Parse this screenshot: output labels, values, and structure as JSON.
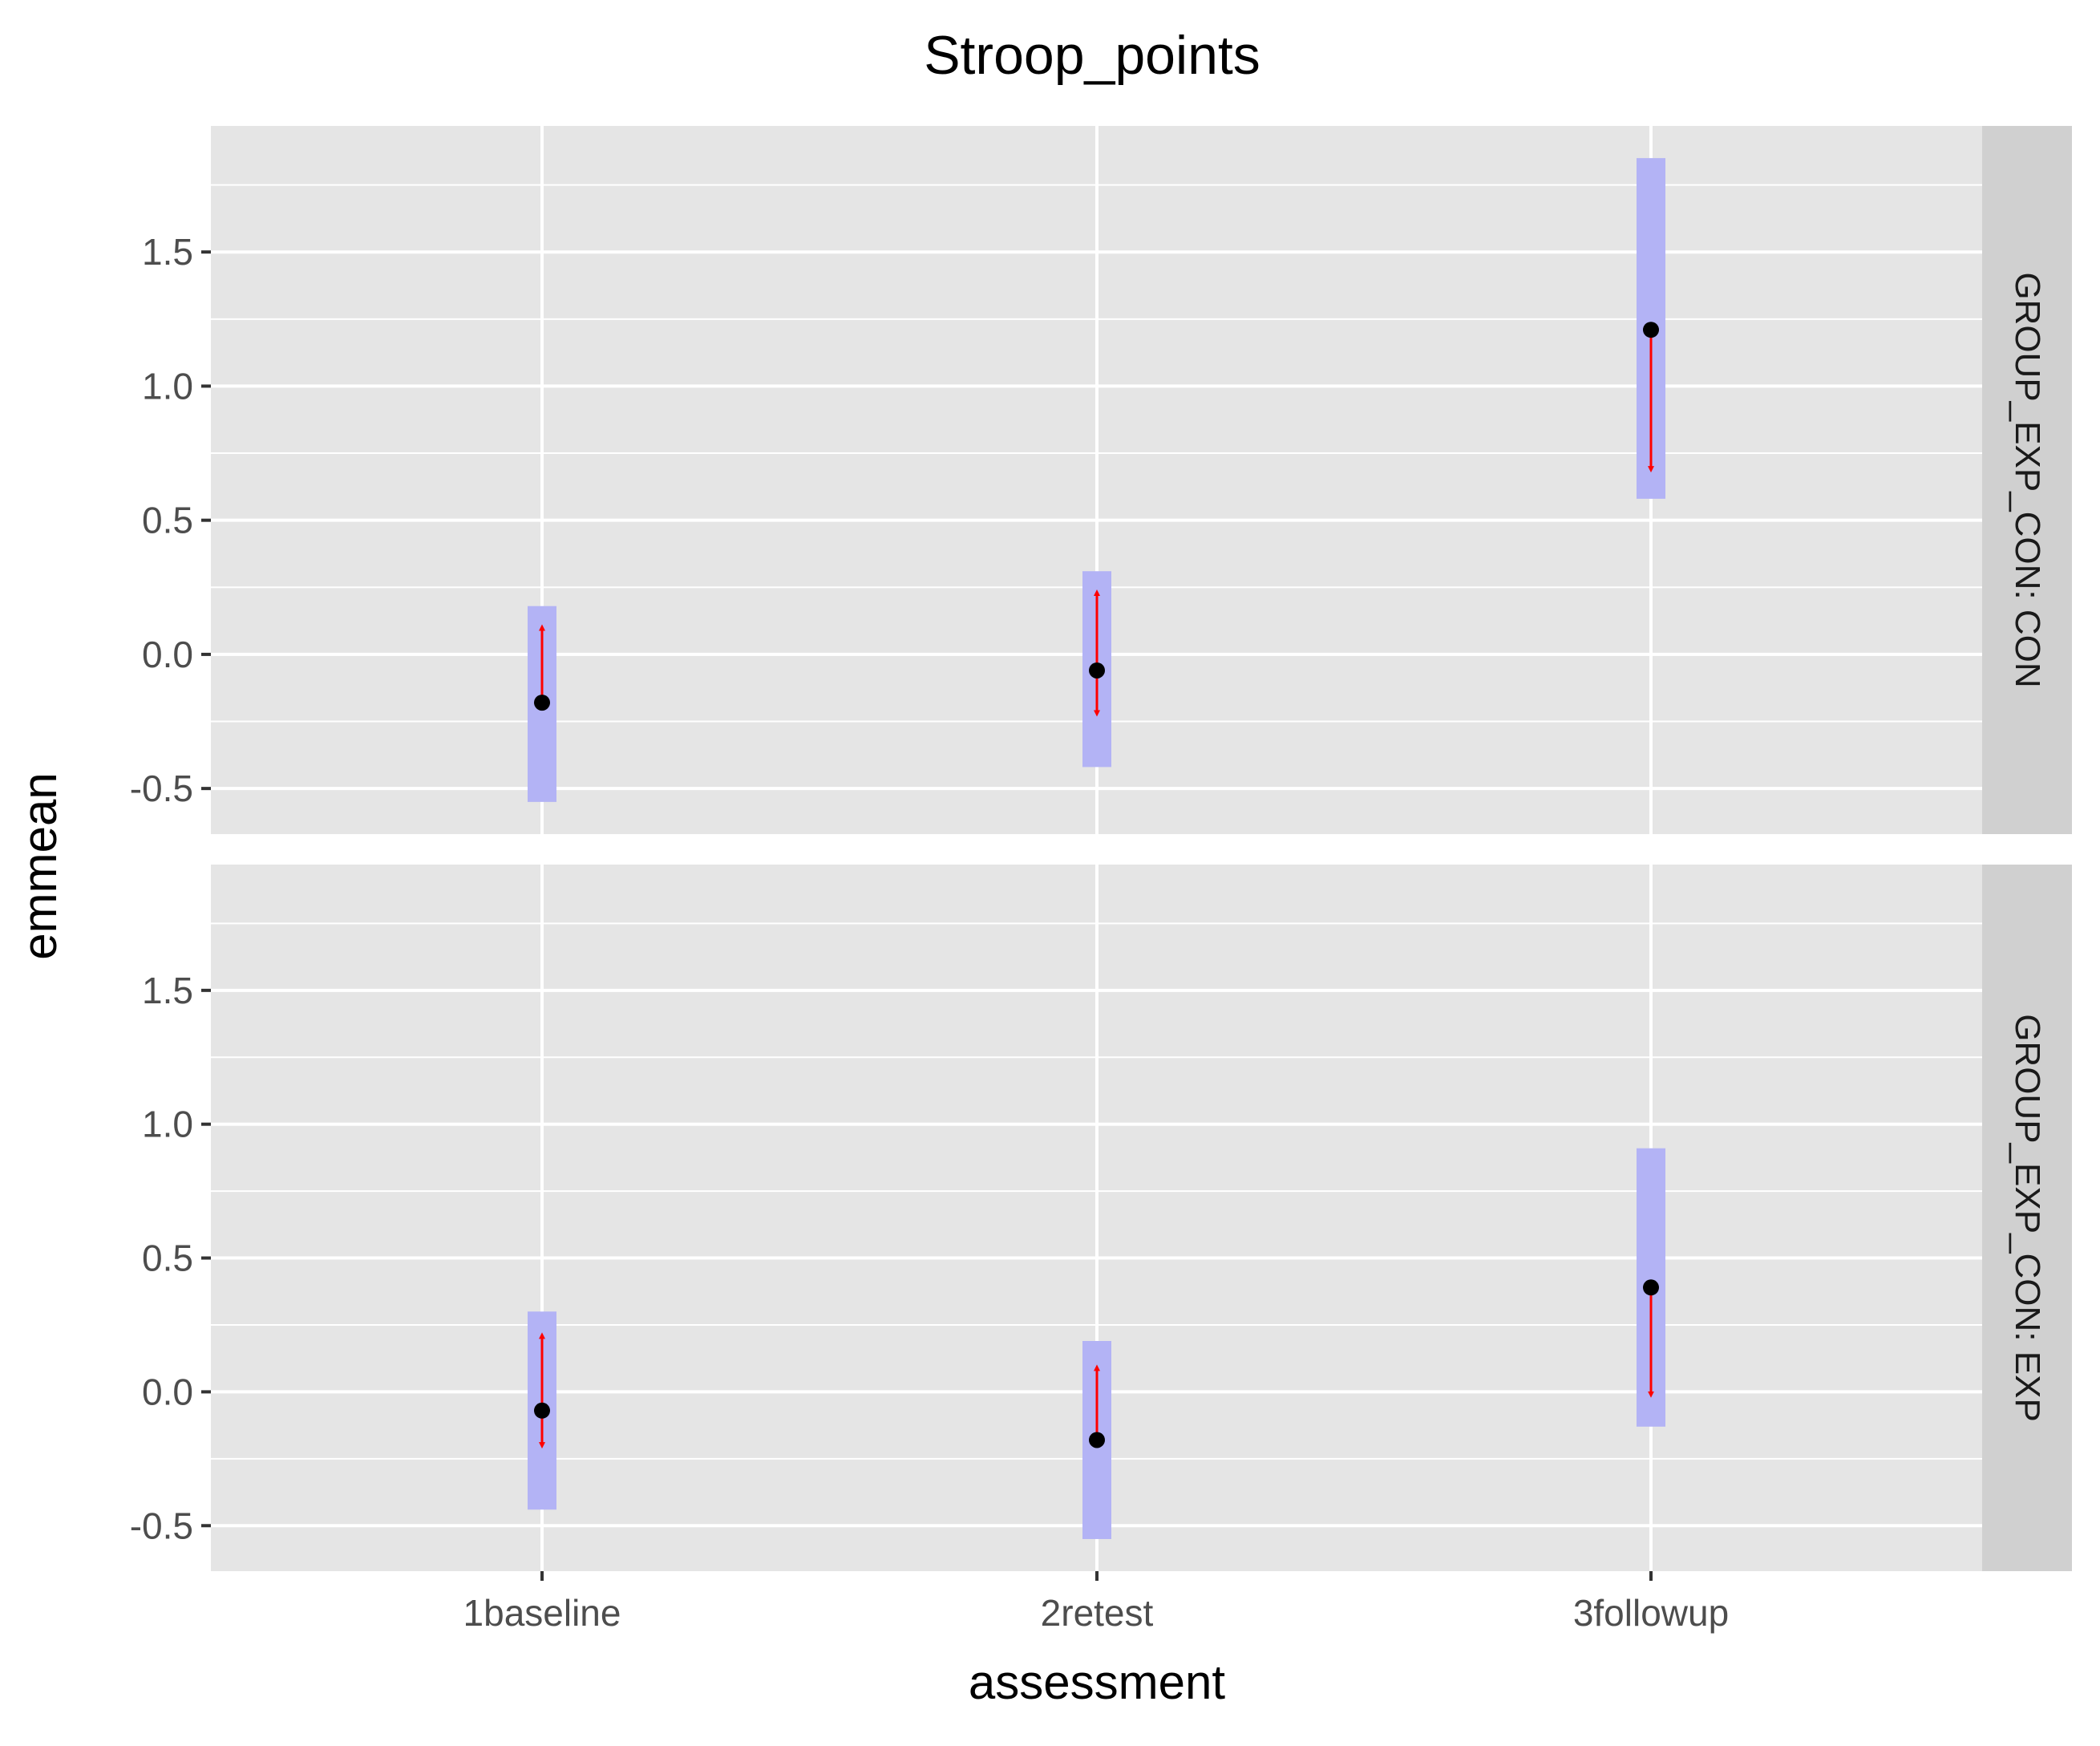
{
  "chart_data": {
    "type": "faceted_point_interval",
    "title": "Stroop_points",
    "xlabel": "assessment",
    "ylabel": "emmean",
    "categories": [
      "1baseline",
      "2retest",
      "3followup"
    ],
    "y_ticks": [
      -0.5,
      0.0,
      0.5,
      1.0,
      1.5
    ],
    "y_tick_labels": [
      "-0.5",
      "0.0",
      "0.5",
      "1.0",
      "1.5"
    ],
    "ylim": [
      -0.67,
      1.97
    ],
    "grid": true,
    "colors": {
      "panel_bg": "#e5e5e5",
      "strip_bg": "#d0d0d0",
      "grid": "#ffffff",
      "interval": "#b3b3f5",
      "arrow": "#ff0000",
      "point": "#000000"
    },
    "panels": [
      {
        "strip": "GROUP_EXP_CON: CON",
        "emmean": [
          -0.18,
          -0.06,
          1.21
        ],
        "lower": [
          -0.55,
          -0.42,
          0.58
        ],
        "upper": [
          0.18,
          0.31,
          1.85
        ],
        "arrow_end": [
          0.1,
          0.23,
          0.69
        ],
        "arrow_start_opposite": [
          null,
          -0.22,
          null
        ]
      },
      {
        "strip": "GROUP_EXP_CON: EXP",
        "emmean": [
          -0.07,
          -0.18,
          0.39
        ],
        "lower": [
          -0.44,
          -0.55,
          -0.13
        ],
        "upper": [
          0.3,
          0.19,
          0.91
        ],
        "arrow_end": [
          0.21,
          0.09,
          -0.01
        ],
        "arrow_start_opposite": [
          -0.2,
          null,
          null
        ]
      }
    ]
  }
}
